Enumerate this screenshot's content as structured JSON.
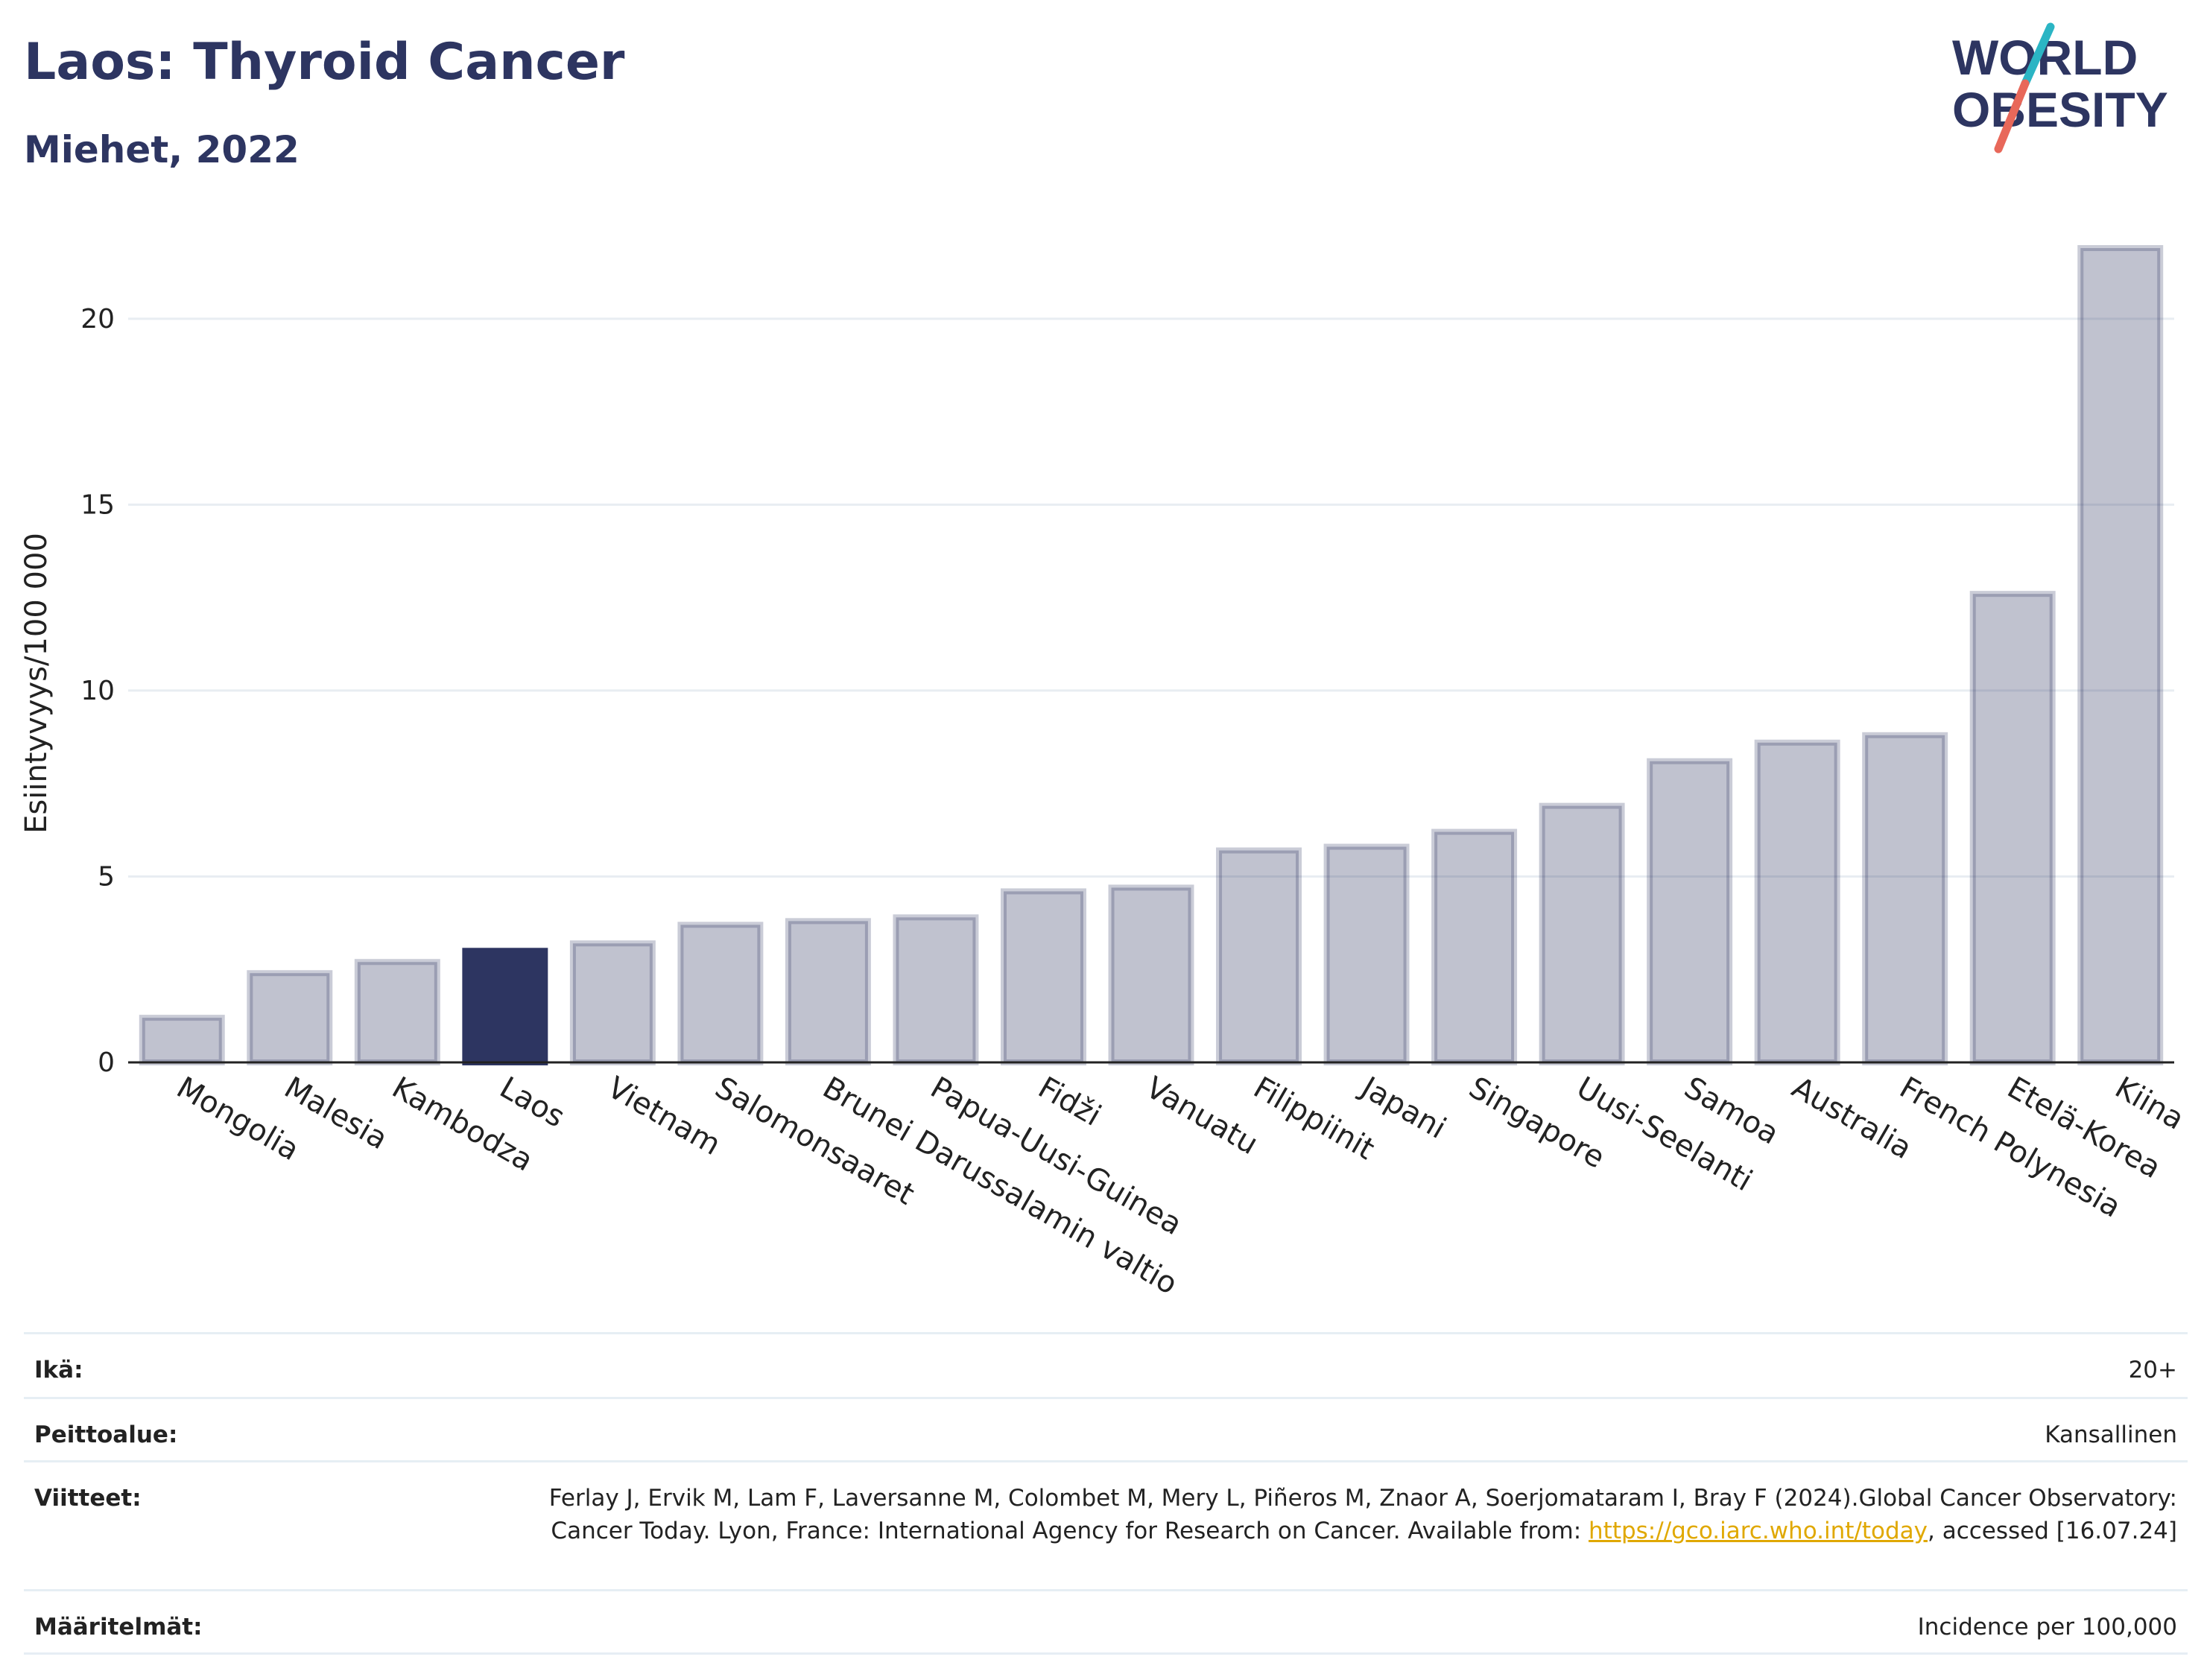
{
  "header": {
    "title": "Laos: Thyroid Cancer",
    "subtitle": "Miehet, 2022"
  },
  "logo": {
    "line1": "WORLD",
    "line2": "OBESITY",
    "colors": {
      "text": "#2d3561",
      "slash_top": "#2bb5c4",
      "slash_bottom": "#e8685a"
    }
  },
  "colors": {
    "bar": "#2d3561",
    "bar_muted": "#2d3561",
    "highlight": "#2d3561"
  },
  "chart_data": {
    "type": "bar",
    "ylabel": "Esiintyvyys/100 000",
    "ylim": [
      0,
      22
    ],
    "yticks": [
      0,
      5,
      10,
      15,
      20
    ],
    "grid": true,
    "highlight": "Laos",
    "categories": [
      "Mongolia",
      "Malesia",
      "Kambodza",
      "Laos",
      "Vietnam",
      "Salomonsaaret",
      "Brunei Darussalamin valtio",
      "Papua-Uusi-Guinea",
      "Fidži",
      "Vanuatu",
      "Filippiinit",
      "Japani",
      "Singapore",
      "Uusi-Seelanti",
      "Samoa",
      "Australia",
      "French Polynesia",
      "Etelä-Korea",
      "Kiina"
    ],
    "values": [
      1.2,
      2.4,
      2.7,
      3.0,
      3.2,
      3.7,
      3.8,
      3.9,
      4.6,
      4.7,
      5.7,
      5.8,
      6.2,
      6.9,
      8.1,
      8.6,
      8.8,
      12.6,
      21.9
    ]
  },
  "info": {
    "rows": [
      {
        "label": "Ikä:",
        "value": "20+"
      },
      {
        "label": "Peittoalue:",
        "value": "Kansallinen"
      },
      {
        "label": "Viitteet:",
        "value_pre": "Ferlay J, Ervik M, Lam F, Laversanne M, Colombet M, Mery L, Piñeros M, Znaor A, Soerjomataram I, Bray F (2024).Global Cancer Observatory: Cancer Today. Lyon, France: International Agency for Research on Cancer. Available from: ",
        "link": "https://gco.iarc.who.int/today",
        "value_post": ", accessed [16.07.24]"
      },
      {
        "label": "Määritelmät:",
        "value": "Incidence per 100,000"
      }
    ]
  }
}
